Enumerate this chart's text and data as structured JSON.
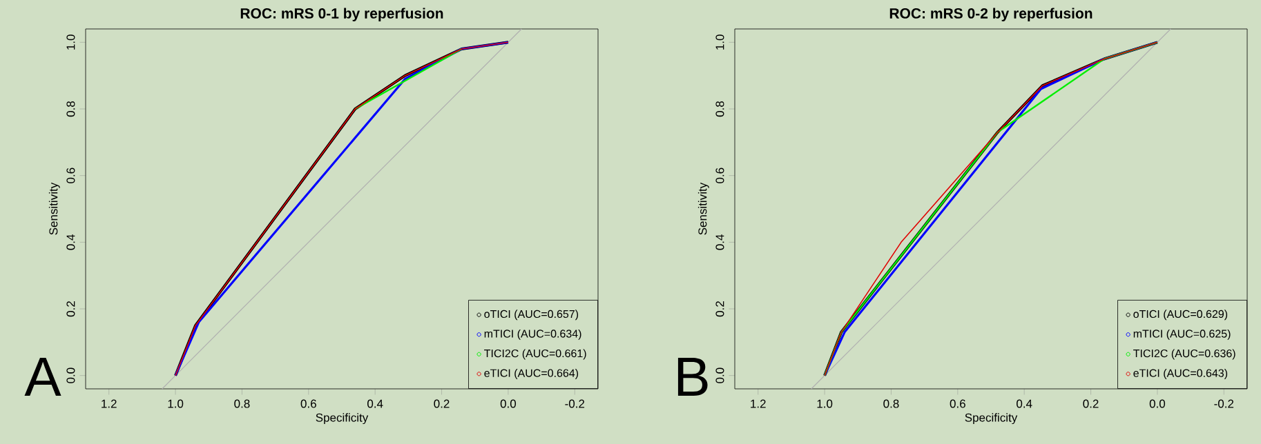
{
  "chart_data": [
    {
      "type": "line",
      "title": "ROC: mRS 0-1 by reperfusion",
      "xlabel": "Specificity",
      "ylabel": "Sensitivity",
      "xlim": [
        1.27,
        -0.27
      ],
      "ylim": [
        -0.04,
        1.04
      ],
      "xticks": [
        {
          "value": 1.2,
          "label": "1.2"
        },
        {
          "value": 1.0,
          "label": "1.0"
        },
        {
          "value": 0.8,
          "label": "0.8"
        },
        {
          "value": 0.6,
          "label": "0.6"
        },
        {
          "value": 0.4,
          "label": "0.4"
        },
        {
          "value": 0.2,
          "label": "0.2"
        },
        {
          "value": 0.0,
          "label": "0.0"
        },
        {
          "value": -0.2,
          "label": "-0.2"
        }
      ],
      "yticks": [
        {
          "value": 0.0,
          "label": "0.0"
        },
        {
          "value": 0.2,
          "label": "0.2"
        },
        {
          "value": 0.4,
          "label": "0.4"
        },
        {
          "value": 0.6,
          "label": "0.6"
        },
        {
          "value": 0.8,
          "label": "0.8"
        },
        {
          "value": 1.0,
          "label": "1.0"
        }
      ],
      "legend": "bottom right",
      "annotations": [
        "A"
      ],
      "series": [
        {
          "color": "#b0b0b0",
          "x": [
            1.04,
            -0.04
          ],
          "values": [
            -0.04,
            1.04
          ]
        },
        {
          "name": "oTICI (AUC=0.657)",
          "color": "#000000",
          "x": [
            1.0,
            0.94,
            0.46,
            0.31,
            0.14,
            0.0
          ],
          "values": [
            0.0,
            0.15,
            0.8,
            0.9,
            0.98,
            1.0
          ]
        },
        {
          "name": "mTICI (AUC=0.634)",
          "color": "#0000ff",
          "x": [
            1.0,
            0.93,
            0.31,
            0.14,
            0.0
          ],
          "values": [
            0.0,
            0.16,
            0.89,
            0.98,
            1.0
          ]
        },
        {
          "name": "TICI2C (AUC=0.661)",
          "color": "#00ee00",
          "x": [
            0.46,
            0.14
          ],
          "values": [
            0.8,
            0.98
          ]
        },
        {
          "name": "eTICI (AUC=0.664)",
          "color": "#e00000",
          "x": [
            1.0,
            0.94,
            0.46,
            0.31,
            0.14,
            0.0
          ],
          "values": [
            0.0,
            0.15,
            0.8,
            0.9,
            0.98,
            1.0
          ]
        }
      ]
    },
    {
      "type": "line",
      "title": "ROC: mRS 0-2 by reperfusion",
      "xlabel": "Specificity",
      "ylabel": "Sensitivity",
      "xlim": [
        1.27,
        -0.27
      ],
      "ylim": [
        -0.04,
        1.04
      ],
      "xticks": [
        {
          "value": 1.2,
          "label": "1.2"
        },
        {
          "value": 1.0,
          "label": "1.0"
        },
        {
          "value": 0.8,
          "label": "0.8"
        },
        {
          "value": 0.6,
          "label": "0.6"
        },
        {
          "value": 0.4,
          "label": "0.4"
        },
        {
          "value": 0.2,
          "label": "0.2"
        },
        {
          "value": 0.0,
          "label": "0.0"
        },
        {
          "value": -0.2,
          "label": "-0.2"
        }
      ],
      "yticks": [
        {
          "value": 0.0,
          "label": "0.0"
        },
        {
          "value": 0.2,
          "label": "0.2"
        },
        {
          "value": 0.4,
          "label": "0.4"
        },
        {
          "value": 0.6,
          "label": "0.6"
        },
        {
          "value": 0.8,
          "label": "0.8"
        },
        {
          "value": 1.0,
          "label": "1.0"
        }
      ],
      "legend": "bottom right",
      "annotations": [
        "B"
      ],
      "series": [
        {
          "color": "#b0b0b0",
          "x": [
            1.04,
            -0.04
          ],
          "values": [
            -0.04,
            1.04
          ]
        },
        {
          "name": "oTICI (AUC=0.629)",
          "color": "#000000",
          "x": [
            1.0,
            0.95,
            0.48,
            0.345,
            0.16,
            0.0
          ],
          "values": [
            0.0,
            0.13,
            0.73,
            0.87,
            0.95,
            1.0
          ]
        },
        {
          "name": "mTICI (AUC=0.625)",
          "color": "#0000ff",
          "x": [
            1.0,
            0.94,
            0.35,
            0.16,
            0.0
          ],
          "values": [
            0.0,
            0.13,
            0.86,
            0.95,
            1.0
          ]
        },
        {
          "name": "TICI2C (AUC=0.636)",
          "color": "#00ee00",
          "x": [
            1.0,
            0.95,
            0.48,
            0.16,
            0.0
          ],
          "values": [
            0.0,
            0.13,
            0.73,
            0.95,
            1.0
          ]
        },
        {
          "name": "eTICI (AUC=0.643)",
          "color": "#e00000",
          "x": [
            1.0,
            0.95,
            0.77,
            0.48,
            0.345,
            0.16,
            0.0
          ],
          "values": [
            0.0,
            0.13,
            0.4,
            0.73,
            0.87,
            0.95,
            1.0
          ]
        }
      ]
    }
  ]
}
